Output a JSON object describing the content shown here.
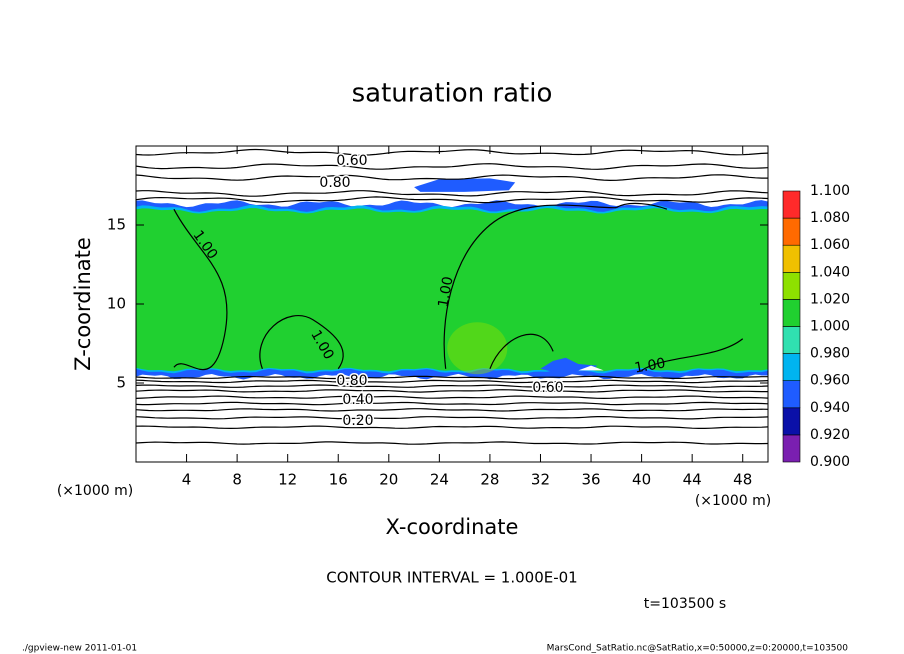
{
  "chart_data": {
    "type": "contour",
    "title": "saturation ratio",
    "x_label": "X-coordinate",
    "y_label": "Z-coordinate",
    "x_unit": "(×1000 m)",
    "xlim": [
      0,
      50
    ],
    "xticks": [
      4,
      8,
      12,
      16,
      20,
      24,
      28,
      32,
      36,
      40,
      44,
      48
    ],
    "ylim": [
      0,
      20
    ],
    "yticks": [
      5,
      10,
      15
    ],
    "colorbar": {
      "levels": [
        {
          "value": 0.9,
          "label": "0.900"
        },
        {
          "value": 0.92,
          "label": "0.920"
        },
        {
          "value": 0.94,
          "label": "0.940"
        },
        {
          "value": 0.96,
          "label": "0.960"
        },
        {
          "value": 0.98,
          "label": "0.980"
        },
        {
          "value": 1.0,
          "label": "1.000"
        },
        {
          "value": 1.02,
          "label": "1.020"
        },
        {
          "value": 1.04,
          "label": "1.040"
        },
        {
          "value": 1.06,
          "label": "1.060"
        },
        {
          "value": 1.08,
          "label": "1.080"
        },
        {
          "value": 1.1,
          "label": "1.100"
        }
      ],
      "colors": [
        "#7a1fb0",
        "#0a10a8",
        "#1f5cff",
        "#00b4f0",
        "#30e0b0",
        "#20d030",
        "#8ee000",
        "#f0c000",
        "#ff6a00",
        "#ff2a2a"
      ]
    },
    "contour_labels": [
      {
        "value": 0.6,
        "label": "0.60"
      },
      {
        "value": 0.8,
        "label": "0.80"
      },
      {
        "value": 1.0,
        "label": "1.00"
      },
      {
        "value": 1.0,
        "label": "1.00"
      },
      {
        "value": 1.0,
        "label": "1.00"
      },
      {
        "value": 1.0,
        "label": "1.00"
      },
      {
        "value": 0.8,
        "label": "0.80"
      },
      {
        "value": 0.6,
        "label": "0.60"
      },
      {
        "value": 0.4,
        "label": "0.40"
      },
      {
        "value": 0.2,
        "label": "0.20"
      }
    ],
    "annotations": {
      "contour_interval": "CONTOUR INTERVAL = 1.000E-01",
      "time": "t=103500 s",
      "footer_left": "./gpview-new   2011-01-01",
      "footer_right": "MarsCond_SatRatio.nc@SatRatio,x=0:50000,z=0:20000,t=103500"
    }
  }
}
